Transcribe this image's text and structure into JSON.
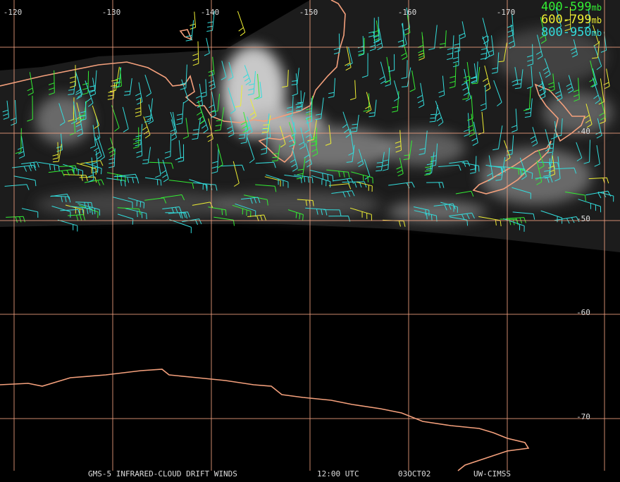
{
  "map": {
    "longitude_labels": [
      "-120",
      "-130",
      "-140",
      "-150",
      "-160",
      "-170"
    ],
    "latitude_labels": [
      "-40",
      "-50",
      "-60",
      "-70"
    ],
    "legend": [
      {
        "label": "400-599",
        "unit": "mb",
        "color": "#33ee33"
      },
      {
        "label": "600-799",
        "unit": "mb",
        "color": "#eeee33"
      },
      {
        "label": "800-950",
        "unit": "mb",
        "color": "#33dddd"
      }
    ],
    "footer": {
      "title": "GMS-5 INFRARED-CLOUD DRIFT WINDS",
      "time": "12:00 UTC",
      "date": "03OCT02",
      "source": "UW-CIMSS"
    }
  }
}
